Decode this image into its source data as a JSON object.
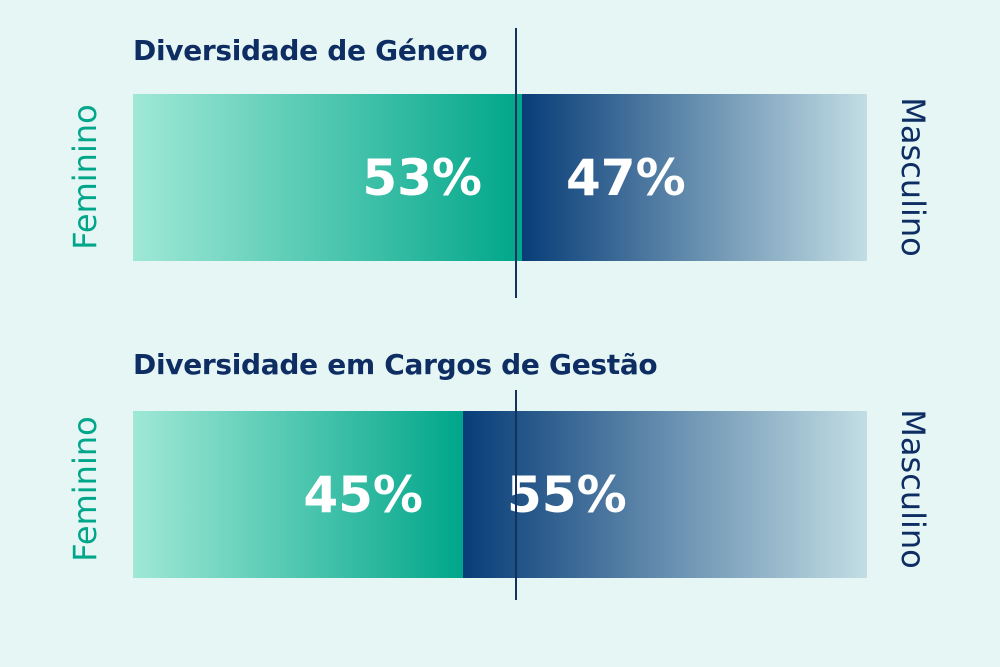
{
  "colors": {
    "background": "#e6f6f5",
    "feminino": "#00a68a",
    "masculino": "#0d2d63"
  },
  "chart_data": [
    {
      "type": "bar",
      "orientation": "horizontal-stacked",
      "title": "Diversidade de Género",
      "categories": [
        "Feminino",
        "Masculino"
      ],
      "values": [
        53,
        47
      ],
      "labels": [
        "53%",
        "47%"
      ],
      "side_labels": {
        "left": "Feminino",
        "right": "Masculino"
      }
    },
    {
      "type": "bar",
      "orientation": "horizontal-stacked",
      "title": "Diversidade em Cargos de Gestão",
      "categories": [
        "Feminino",
        "Masculino"
      ],
      "values": [
        45,
        55
      ],
      "labels": [
        "45%",
        "55%"
      ],
      "side_labels": {
        "left": "Feminino",
        "right": "Masculino"
      }
    }
  ]
}
